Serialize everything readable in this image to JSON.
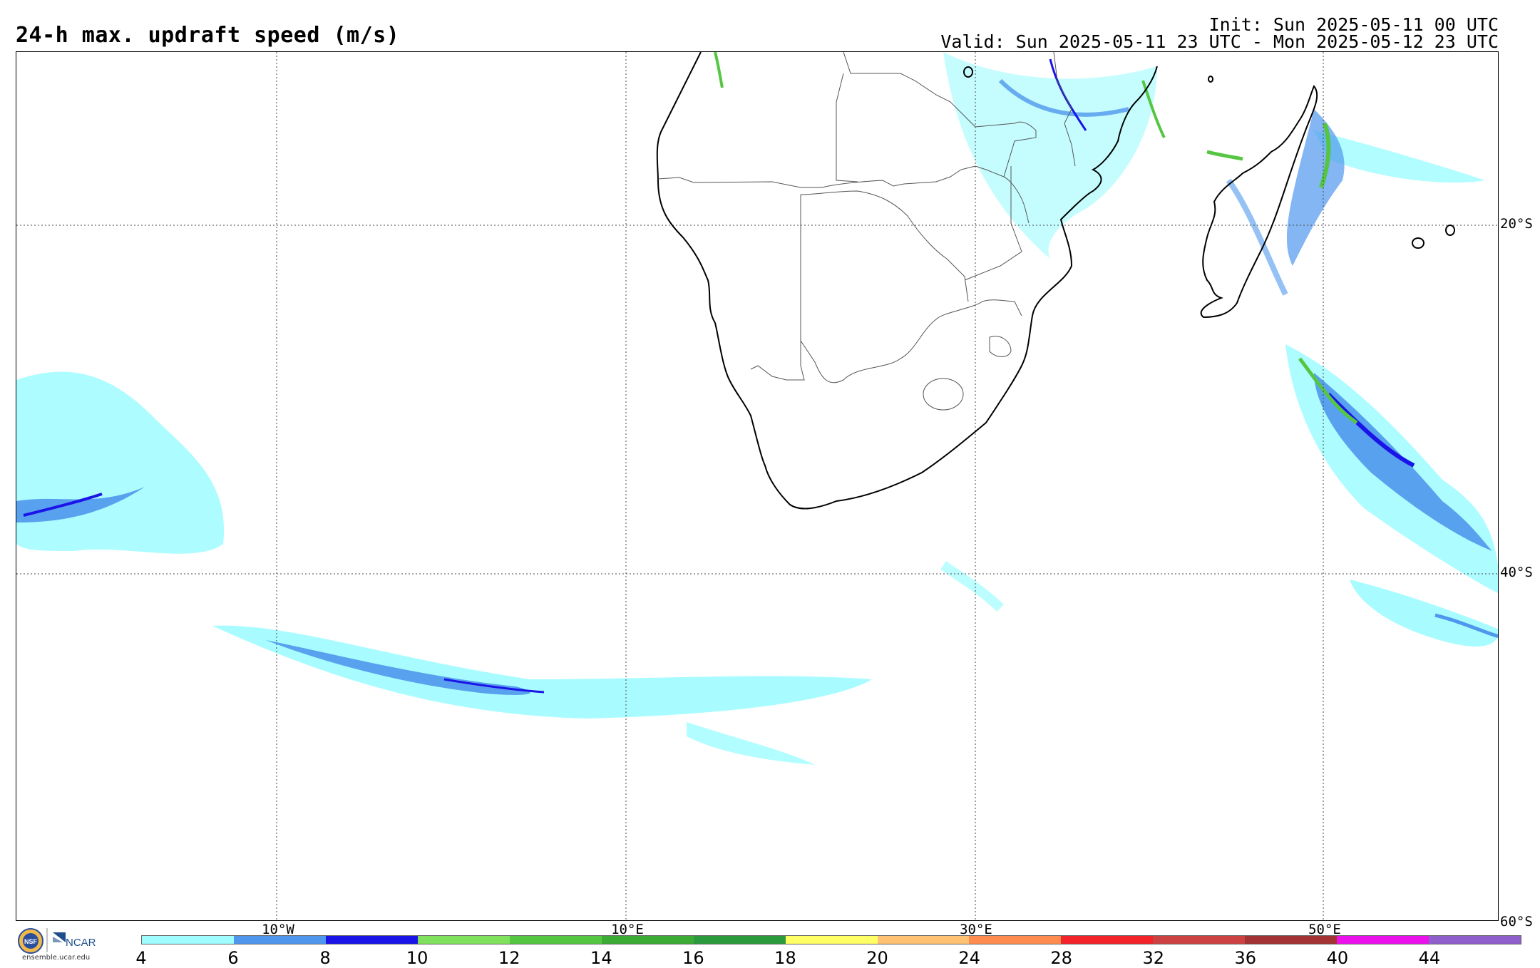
{
  "title": "24-h max. updraft speed (m/s)",
  "init": "Init: Sun 2025-05-11 00 UTC",
  "valid": "Valid: Sun 2025-05-11 23 UTC - Mon 2025-05-12 23 UTC",
  "lat_labels": [
    "20°S",
    "40°S",
    "60°S"
  ],
  "lon_labels": [
    "10°W",
    "10°E",
    "30°E",
    "50°E"
  ],
  "colorbar": {
    "ticks": [
      "4",
      "6",
      "8",
      "10",
      "12",
      "14",
      "16",
      "18",
      "20",
      "24",
      "28",
      "32",
      "36",
      "40",
      "44"
    ],
    "colors": [
      "#9ffcff",
      "#4f97ec",
      "#1a14e8",
      "#7fe15c",
      "#55c642",
      "#3bab35",
      "#2a9a3c",
      "#ffff66",
      "#ffc272",
      "#ff8c4e",
      "#f3232a",
      "#cc4141",
      "#a33232",
      "#ec11ec",
      "#8f5fcc"
    ]
  },
  "logo": {
    "org1": "NSF",
    "org2": "NCAR",
    "url": "ensemble.ucar.edu"
  },
  "colors": {
    "light_cyan": "#9ffcff",
    "mid_blue": "#4f97ec",
    "dark_blue": "#1a14e8",
    "green": "#55c642",
    "coast": "#000000",
    "border": "#666666"
  }
}
